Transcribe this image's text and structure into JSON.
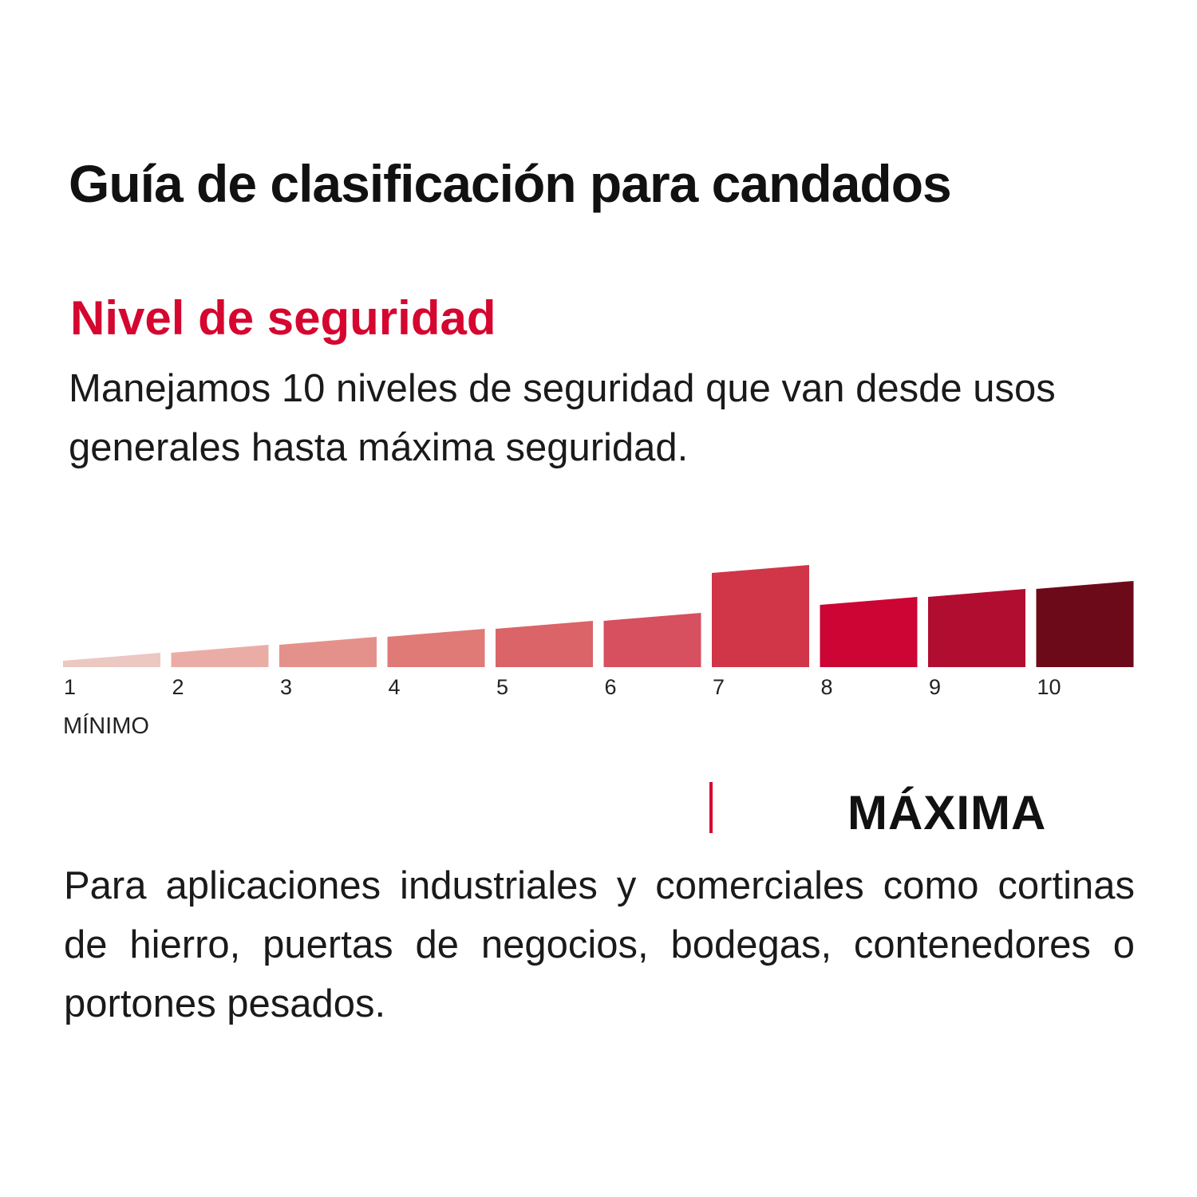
{
  "title": "Guía de clasificación para candados",
  "section": {
    "heading": "Nivel de seguridad",
    "heading_color": "#d5062f",
    "intro": "Manejamos 10 niveles de seguridad que van desde usos generales hasta máxima seguridad."
  },
  "scale": {
    "levels": [
      {
        "label": "1",
        "value": 1,
        "color": "#ecc8c2"
      },
      {
        "label": "2",
        "value": 2,
        "color": "#eaada6"
      },
      {
        "label": "3",
        "value": 3,
        "color": "#e5918b"
      },
      {
        "label": "4",
        "value": 4,
        "color": "#df7a77"
      },
      {
        "label": "5",
        "value": 5,
        "color": "#da6468"
      },
      {
        "label": "6",
        "value": 6,
        "color": "#d65060"
      },
      {
        "label": "7",
        "value": 7,
        "color": "#d13548",
        "highlighted": true
      },
      {
        "label": "8",
        "value": 8,
        "color": "#cc0534"
      },
      {
        "label": "9",
        "value": 9,
        "color": "#b10d30"
      },
      {
        "label": "10",
        "value": 10,
        "color": "#6d0a19"
      }
    ],
    "min_label": "MÍNIMO",
    "highlighted_level": 7
  },
  "selected": {
    "label": "MÁXIMA",
    "marker_color": "#d5062f",
    "description": "Para aplicaciones industriales y comerciales como cortinas de hierro, puertas de negocios, bodegas, contenedores o portones pesados."
  }
}
